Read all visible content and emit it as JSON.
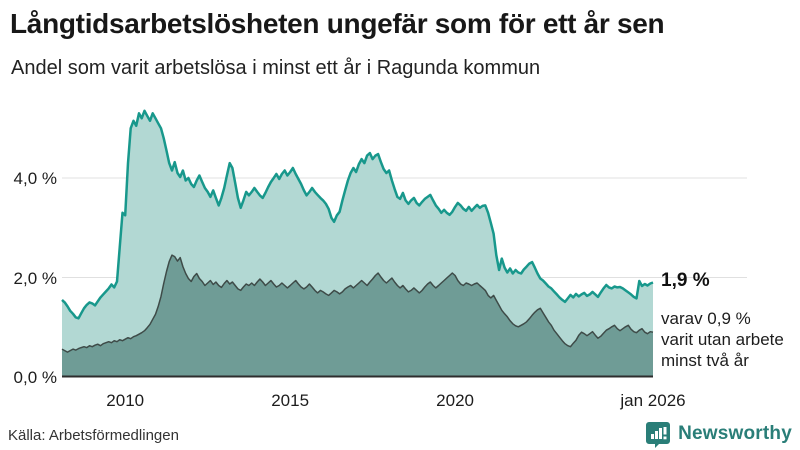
{
  "header": {
    "title": "Långtidsarbetslösheten ungefär som för ett år sen",
    "subtitle": "Andel som varit arbetslösa i minst ett år i Ragunda kommun"
  },
  "annotations": {
    "latest_value": "1,9 %",
    "secondary_note": "varav 0,9 %\nvarit utan arbete\nminst två år"
  },
  "footer": {
    "source": "Källa: Arbetsförmedlingen",
    "brand_name": "Newsworthy",
    "brand_icon": "newsworthy-speech-bubble-chart-icon"
  },
  "colors": {
    "series1_line": "#18988c",
    "series1_fill": "#b2d8d3",
    "series2_line": "#3e4b48",
    "series2_fill": "#6f9c96",
    "gridline": "#e0e0e0",
    "axis": "#2d2d2d",
    "brand": "#2a7e78",
    "text": "#1d1d1d"
  },
  "chart_data": {
    "type": "area",
    "title": "Långtidsarbetslösheten ungefär som för ett år sen",
    "subtitle": "Andel som varit arbetslösa i minst ett år i Ragunda kommun",
    "unit": "%",
    "grid": true,
    "legend": "none (annotated at line ends)",
    "x_start": 2008.0833,
    "x_end": 2026.0,
    "x_ticks": [
      {
        "value": 2010,
        "label": "2010"
      },
      {
        "value": 2015,
        "label": "2015"
      },
      {
        "value": 2020,
        "label": "2020"
      },
      {
        "value": 2026,
        "label": "jan 2026"
      }
    ],
    "y_ticks": [
      {
        "value": 0,
        "label": "0,0 %"
      },
      {
        "value": 2,
        "label": "2,0 %"
      },
      {
        "value": 4,
        "label": "4,0 %"
      }
    ],
    "ylim": [
      0,
      5.6
    ],
    "latest": {
      "total": 1.9,
      "two_years": 0.9,
      "x_label": "jan 2026"
    },
    "series": [
      {
        "name": "arbetslösa minst ett år",
        "line_color": "#18988c",
        "fill_color": "#b2d8d3",
        "line_width": 2.5,
        "values": [
          1.55,
          1.5,
          1.42,
          1.33,
          1.27,
          1.2,
          1.18,
          1.28,
          1.38,
          1.45,
          1.5,
          1.48,
          1.44,
          1.52,
          1.6,
          1.66,
          1.72,
          1.78,
          1.86,
          1.8,
          1.92,
          2.6,
          3.3,
          3.25,
          4.3,
          5.0,
          5.15,
          5.05,
          5.3,
          5.2,
          5.35,
          5.25,
          5.15,
          5.3,
          5.2,
          5.1,
          5.0,
          4.8,
          4.55,
          4.3,
          4.15,
          4.32,
          4.1,
          4.02,
          4.15,
          3.95,
          4.0,
          3.88,
          3.82,
          3.95,
          4.05,
          3.92,
          3.8,
          3.72,
          3.62,
          3.75,
          3.6,
          3.45,
          3.6,
          3.8,
          4.05,
          4.3,
          4.2,
          3.9,
          3.6,
          3.4,
          3.55,
          3.72,
          3.65,
          3.72,
          3.8,
          3.72,
          3.65,
          3.6,
          3.7,
          3.82,
          3.92,
          4.0,
          4.08,
          3.98,
          4.08,
          4.15,
          4.05,
          4.12,
          4.2,
          4.08,
          3.98,
          3.88,
          3.75,
          3.65,
          3.72,
          3.8,
          3.72,
          3.66,
          3.6,
          3.55,
          3.48,
          3.38,
          3.2,
          3.12,
          3.25,
          3.32,
          3.55,
          3.75,
          3.95,
          4.1,
          4.2,
          4.12,
          4.28,
          4.38,
          4.3,
          4.45,
          4.5,
          4.38,
          4.45,
          4.48,
          4.32,
          4.18,
          4.1,
          4.15,
          3.95,
          3.78,
          3.62,
          3.58,
          3.7,
          3.55,
          3.48,
          3.55,
          3.6,
          3.5,
          3.45,
          3.52,
          3.58,
          3.62,
          3.66,
          3.55,
          3.45,
          3.38,
          3.3,
          3.36,
          3.3,
          3.26,
          3.32,
          3.42,
          3.5,
          3.45,
          3.38,
          3.34,
          3.42,
          3.34,
          3.4,
          3.46,
          3.4,
          3.44,
          3.45,
          3.3,
          3.1,
          2.88,
          2.45,
          2.15,
          2.38,
          2.2,
          2.1,
          2.18,
          2.08,
          2.15,
          2.1,
          2.08,
          2.16,
          2.22,
          2.28,
          2.31,
          2.2,
          2.08,
          1.98,
          1.94,
          1.88,
          1.82,
          1.78,
          1.72,
          1.66,
          1.6,
          1.55,
          1.51,
          1.58,
          1.65,
          1.6,
          1.67,
          1.62,
          1.66,
          1.69,
          1.63,
          1.66,
          1.71,
          1.66,
          1.61,
          1.7,
          1.78,
          1.85,
          1.8,
          1.78,
          1.82,
          1.8,
          1.81,
          1.78,
          1.74,
          1.7,
          1.66,
          1.61,
          1.58,
          1.93,
          1.83,
          1.87,
          1.84,
          1.88,
          1.9
        ]
      },
      {
        "name": "varav utan arbete minst två år",
        "line_color": "#3e4b48",
        "fill_color": "#6f9c96",
        "line_width": 1.5,
        "values": [
          0.56,
          0.53,
          0.5,
          0.53,
          0.56,
          0.54,
          0.57,
          0.59,
          0.61,
          0.59,
          0.63,
          0.61,
          0.64,
          0.66,
          0.63,
          0.67,
          0.69,
          0.71,
          0.69,
          0.73,
          0.71,
          0.75,
          0.73,
          0.76,
          0.79,
          0.77,
          0.81,
          0.83,
          0.86,
          0.89,
          0.93,
          0.99,
          1.06,
          1.16,
          1.26,
          1.42,
          1.62,
          1.88,
          2.12,
          2.32,
          2.45,
          2.42,
          2.33,
          2.4,
          2.22,
          2.08,
          1.98,
          1.92,
          2.02,
          2.08,
          1.98,
          1.92,
          1.84,
          1.89,
          1.94,
          1.86,
          1.91,
          1.84,
          1.8,
          1.88,
          1.94,
          1.87,
          1.91,
          1.84,
          1.77,
          1.74,
          1.81,
          1.87,
          1.84,
          1.89,
          1.84,
          1.91,
          1.97,
          1.91,
          1.84,
          1.89,
          1.94,
          1.87,
          1.81,
          1.84,
          1.89,
          1.84,
          1.79,
          1.84,
          1.89,
          1.94,
          1.87,
          1.81,
          1.77,
          1.81,
          1.87,
          1.81,
          1.74,
          1.69,
          1.74,
          1.71,
          1.67,
          1.64,
          1.69,
          1.74,
          1.71,
          1.67,
          1.71,
          1.77,
          1.81,
          1.84,
          1.79,
          1.84,
          1.89,
          1.94,
          1.89,
          1.84,
          1.91,
          1.97,
          2.04,
          2.09,
          2.01,
          1.94,
          1.89,
          1.94,
          1.99,
          1.91,
          1.84,
          1.79,
          1.84,
          1.77,
          1.71,
          1.74,
          1.79,
          1.74,
          1.69,
          1.74,
          1.81,
          1.87,
          1.91,
          1.84,
          1.79,
          1.84,
          1.89,
          1.94,
          1.99,
          2.04,
          2.09,
          2.04,
          1.94,
          1.87,
          1.84,
          1.89,
          1.87,
          1.84,
          1.87,
          1.89,
          1.84,
          1.79,
          1.74,
          1.64,
          1.59,
          1.64,
          1.54,
          1.44,
          1.34,
          1.27,
          1.21,
          1.13,
          1.07,
          1.03,
          1.01,
          1.04,
          1.07,
          1.11,
          1.17,
          1.24,
          1.3,
          1.35,
          1.38,
          1.29,
          1.2,
          1.11,
          1.04,
          0.94,
          0.87,
          0.8,
          0.73,
          0.67,
          0.63,
          0.61,
          0.68,
          0.74,
          0.84,
          0.9,
          0.87,
          0.83,
          0.87,
          0.91,
          0.84,
          0.78,
          0.82,
          0.88,
          0.94,
          0.97,
          1.01,
          1.04,
          0.97,
          0.93,
          0.97,
          1.01,
          1.04,
          0.96,
          0.91,
          0.89,
          0.94,
          0.97,
          0.9,
          0.87,
          0.91,
          0.9
        ]
      }
    ]
  }
}
